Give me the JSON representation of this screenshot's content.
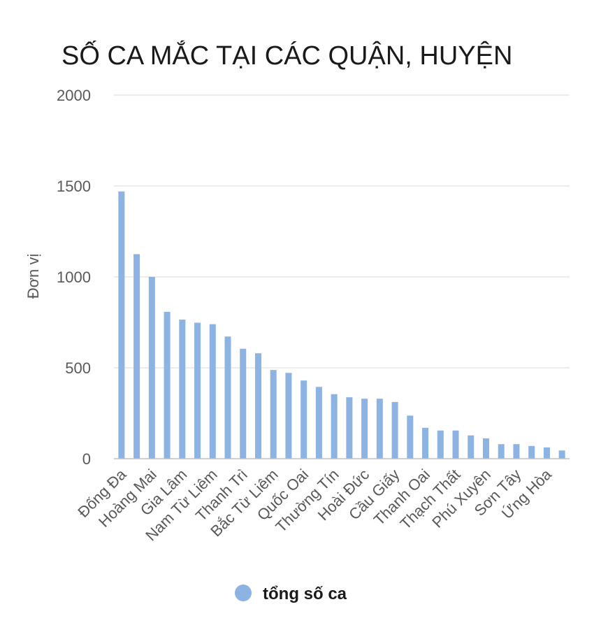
{
  "chart_data": {
    "type": "bar",
    "title": "SỐ CA MẮC TẠI CÁC QUẬN, HUYỆN",
    "ylabel": "Đơn vị",
    "xlabel": "",
    "ylim": [
      0,
      2000
    ],
    "yticks": [
      0,
      500,
      1000,
      1500,
      2000
    ],
    "grid": true,
    "legend_position": "bottom",
    "bar_color": "#8db3e2",
    "series": [
      {
        "name": "tổng số ca",
        "values": [
          1470,
          1125,
          1000,
          808,
          765,
          748,
          740,
          672,
          605,
          580,
          488,
          472,
          430,
          395,
          355,
          338,
          330,
          330,
          312,
          237,
          170,
          155,
          155,
          128,
          112,
          80,
          80,
          70,
          62,
          45
        ]
      }
    ],
    "categories": [
      "Đống Đa",
      "",
      "Hoàng Mai",
      "",
      "Gia Lâm",
      "",
      "Nam Từ Liêm",
      "",
      "Thanh Trì",
      "",
      "Bắc Từ Liêm",
      "",
      "Quốc Oai",
      "",
      "Thường Tín",
      "",
      "Hoài Đức",
      "",
      "Cầu Giấy",
      "",
      "Thanh Oai",
      "",
      "Thạch Thất",
      "",
      "Phú Xuyên",
      "",
      "Sơn Tây",
      "",
      "Ứng Hòa",
      ""
    ]
  }
}
